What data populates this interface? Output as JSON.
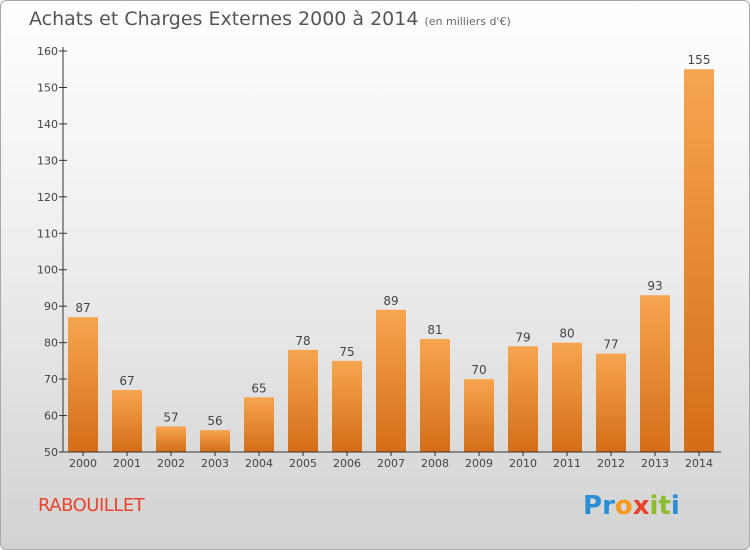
{
  "header": {
    "title": "Achats et Charges Externes 2000 à 2014",
    "unit": "(en milliers d'€)"
  },
  "footer": {
    "commune": "RABOUILLET",
    "brand": {
      "letters": [
        "P",
        "r",
        "o",
        "x",
        "i",
        "t",
        "i"
      ],
      "colors": [
        "#2a8fd6",
        "#2a8fd6",
        "#f29b1d",
        "#e8432c",
        "#8bbd2c",
        "#8bbd2c",
        "#2a8fd6"
      ]
    }
  },
  "colors": {
    "bar_light": "#f7a54f",
    "bar_dark": "#d56d18",
    "axis": "#333333",
    "text": "#444444"
  },
  "chart_data": {
    "type": "bar",
    "categories": [
      "2000",
      "2001",
      "2002",
      "2003",
      "2004",
      "2005",
      "2006",
      "2007",
      "2008",
      "2009",
      "2010",
      "2011",
      "2012",
      "2013",
      "2014"
    ],
    "values": [
      87,
      67,
      57,
      56,
      65,
      78,
      75,
      89,
      81,
      70,
      79,
      80,
      77,
      93,
      155
    ],
    "title": "Achats et Charges Externes 2000 à 2014",
    "subtitle": "(en milliers d'€)",
    "xlabel": "",
    "ylabel": "",
    "ylim": [
      50,
      160
    ],
    "yticks": [
      50,
      60,
      70,
      80,
      90,
      100,
      110,
      120,
      130,
      140,
      150,
      160
    ],
    "grid": false,
    "data_labels": true
  }
}
